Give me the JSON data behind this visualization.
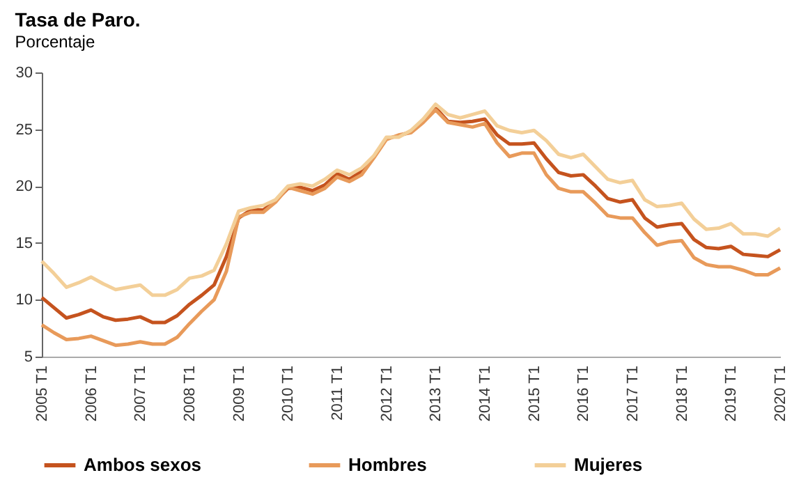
{
  "chart_data": {
    "type": "line",
    "title": "Tasa de Paro.",
    "subtitle": "Porcentaje",
    "categories": [
      "2005 T1",
      null,
      null,
      null,
      "2006 T1",
      null,
      null,
      null,
      "2007 T1",
      null,
      null,
      null,
      "2008 T1",
      null,
      null,
      null,
      "2009 T1",
      null,
      null,
      null,
      "2010 T1",
      null,
      null,
      null,
      "2011 T1",
      null,
      null,
      null,
      "2012 T1",
      null,
      null,
      null,
      "2013 T1",
      null,
      null,
      null,
      "2014 T1",
      null,
      null,
      null,
      "2015 T1",
      null,
      null,
      null,
      "2016 T1",
      null,
      null,
      null,
      "2017 T1",
      null,
      null,
      null,
      "2018 T1",
      null,
      null,
      null,
      "2019 T1",
      null,
      null,
      null,
      "2020 T1"
    ],
    "series": [
      {
        "name": "Ambos sexos",
        "color": "#c5531e",
        "values": [
          10.2,
          9.3,
          8.4,
          8.7,
          9.1,
          8.5,
          8.2,
          8.3,
          8.5,
          8.0,
          8.0,
          8.6,
          9.6,
          10.4,
          11.3,
          13.8,
          17.2,
          17.9,
          17.9,
          18.7,
          19.8,
          19.9,
          19.6,
          20.1,
          21.1,
          20.6,
          21.3,
          22.6,
          24.2,
          24.4,
          24.8,
          25.8,
          26.9,
          25.7,
          25.6,
          25.7,
          25.9,
          24.5,
          23.7,
          23.7,
          23.8,
          22.4,
          21.2,
          20.9,
          21.0,
          20.0,
          18.9,
          18.6,
          18.8,
          17.2,
          16.4,
          16.6,
          16.7,
          15.3,
          14.6,
          14.5,
          14.7,
          14.0,
          13.9,
          13.8,
          14.4
        ]
      },
      {
        "name": "Hombres",
        "color": "#e89a5a",
        "values": [
          7.8,
          7.1,
          6.5,
          6.6,
          6.8,
          6.4,
          6.0,
          6.1,
          6.3,
          6.1,
          6.1,
          6.7,
          7.9,
          9.0,
          10.0,
          12.5,
          17.3,
          17.7,
          17.7,
          18.6,
          19.9,
          19.6,
          19.3,
          19.8,
          20.8,
          20.4,
          21.0,
          22.5,
          24.1,
          24.5,
          24.7,
          25.6,
          26.7,
          25.6,
          25.4,
          25.2,
          25.5,
          23.8,
          22.6,
          22.9,
          22.9,
          21.0,
          19.8,
          19.5,
          19.5,
          18.5,
          17.4,
          17.2,
          17.2,
          15.9,
          14.8,
          15.1,
          15.2,
          13.7,
          13.1,
          12.9,
          12.9,
          12.6,
          12.2,
          12.2,
          12.8
        ]
      },
      {
        "name": "Mujeres",
        "color": "#f3cf98",
        "values": [
          13.4,
          12.3,
          11.1,
          11.5,
          12.0,
          11.4,
          10.9,
          11.1,
          11.3,
          10.4,
          10.4,
          10.9,
          11.9,
          12.1,
          12.6,
          14.9,
          17.8,
          18.1,
          18.3,
          18.8,
          20.0,
          20.2,
          20.0,
          20.6,
          21.4,
          21.0,
          21.6,
          22.7,
          24.3,
          24.3,
          24.9,
          25.9,
          27.2,
          26.3,
          26.0,
          26.3,
          26.6,
          25.3,
          24.9,
          24.7,
          24.9,
          24.0,
          22.8,
          22.5,
          22.8,
          21.7,
          20.6,
          20.3,
          20.5,
          18.8,
          18.2,
          18.3,
          18.5,
          17.1,
          16.2,
          16.3,
          16.7,
          15.8,
          15.8,
          15.6,
          16.3
        ]
      }
    ],
    "ylim": [
      5,
      30
    ],
    "yticks": [
      5,
      10,
      15,
      20,
      25,
      30
    ],
    "grid": false,
    "legend": "bottom",
    "marker": "none",
    "line_style": "solid"
  }
}
